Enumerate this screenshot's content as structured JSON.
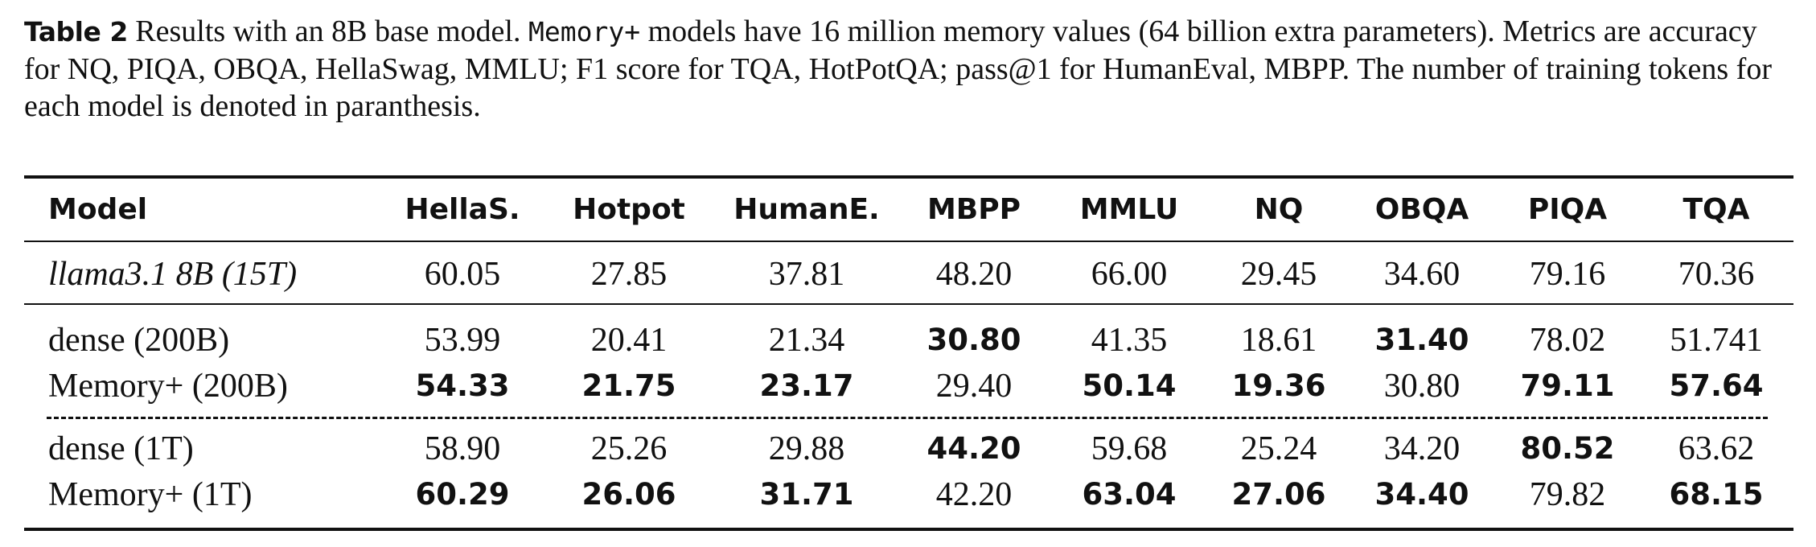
{
  "caption": {
    "label": "Table 2",
    "text_before": " Results with an 8B base model. ",
    "mono": "Memory+",
    "text_after": " models have 16 million memory values (64 billion extra parameters). Metrics are accuracy for NQ, PIQA, OBQA, HellaSwag, MMLU; F1 score for TQA, HotPotQA; pass@1 for HumanEval, MBPP. The number of training tokens for each model is denoted in paranthesis."
  },
  "table": {
    "headers": [
      "Model",
      "HellaS.",
      "Hotpot",
      "HumanE.",
      "MBPP",
      "MMLU",
      "NQ",
      "OBQA",
      "PIQA",
      "TQA"
    ],
    "rows": [
      {
        "model": "llama3.1 8B (15T)",
        "values": [
          "60.05",
          "27.85",
          "37.81",
          "48.20",
          "66.00",
          "29.45",
          "34.60",
          "79.16",
          "70.36"
        ],
        "bold": [
          false,
          false,
          false,
          false,
          false,
          false,
          false,
          false,
          false
        ]
      },
      {
        "model": "dense (200B)",
        "values": [
          "53.99",
          "20.41",
          "21.34",
          "30.80",
          "41.35",
          "18.61",
          "31.40",
          "78.02",
          "51.741"
        ],
        "bold": [
          false,
          false,
          false,
          true,
          false,
          false,
          true,
          false,
          false
        ]
      },
      {
        "model": "Memory+ (200B)",
        "values": [
          "54.33",
          "21.75",
          "23.17",
          "29.40",
          "50.14",
          "19.36",
          "30.80",
          "79.11",
          "57.64"
        ],
        "bold": [
          true,
          true,
          true,
          false,
          true,
          true,
          false,
          true,
          true
        ]
      },
      {
        "model": "dense (1T)",
        "values": [
          "58.90",
          "25.26",
          "29.88",
          "44.20",
          "59.68",
          "25.24",
          "34.20",
          "80.52",
          "63.62"
        ],
        "bold": [
          false,
          false,
          false,
          true,
          false,
          false,
          false,
          true,
          false
        ]
      },
      {
        "model": "Memory+ (1T)",
        "values": [
          "60.29",
          "26.06",
          "31.71",
          "42.20",
          "63.04",
          "27.06",
          "34.40",
          "79.82",
          "68.15"
        ],
        "bold": [
          true,
          true,
          true,
          false,
          true,
          true,
          true,
          false,
          true
        ]
      }
    ]
  }
}
